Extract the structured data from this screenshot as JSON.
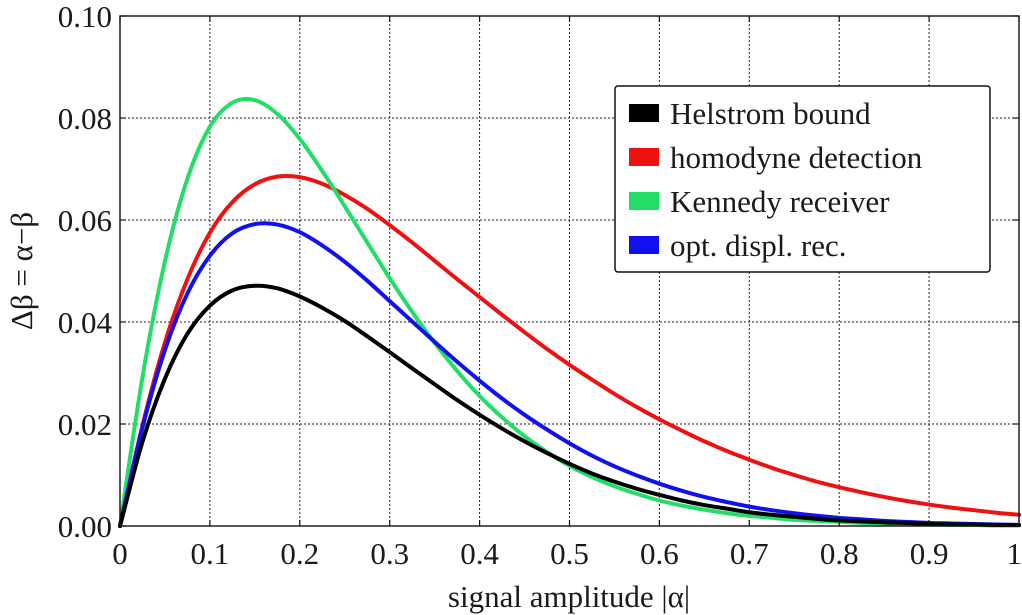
{
  "chart_data": {
    "type": "line",
    "xlabel": "signal amplitude |α|",
    "ylabel": "Δβ = α−β",
    "xlim": [
      0,
      1
    ],
    "ylim": [
      0,
      0.1
    ],
    "xticks": [
      0,
      0.1,
      0.2,
      0.3,
      0.4,
      0.5,
      0.6,
      0.7,
      0.8,
      0.9,
      1
    ],
    "xtick_labels": [
      "0",
      "0.1",
      "0.2",
      "0.3",
      "0.4",
      "0.5",
      "0.6",
      "0.7",
      "0.8",
      "0.9",
      "1"
    ],
    "yticks": [
      0,
      0.02,
      0.04,
      0.06,
      0.08,
      0.1
    ],
    "ytick_labels": [
      "0.00",
      "0.02",
      "0.04",
      "0.06",
      "0.08",
      "0.10"
    ],
    "grid": true,
    "legend_position": "top-right",
    "x": [
      0,
      0.025,
      0.05,
      0.075,
      0.1,
      0.125,
      0.15,
      0.175,
      0.2,
      0.225,
      0.25,
      0.275,
      0.3,
      0.325,
      0.35,
      0.375,
      0.4,
      0.425,
      0.45,
      0.475,
      0.5,
      0.525,
      0.55,
      0.575,
      0.6,
      0.625,
      0.65,
      0.675,
      0.7,
      0.725,
      0.75,
      0.775,
      0.8,
      0.825,
      0.85,
      0.875,
      0.9,
      0.925,
      0.95,
      0.975,
      1
    ],
    "series": [
      {
        "name": "Helstrom bound",
        "color": "#000000",
        "values": [
          0.0,
          0.0165,
          0.0289,
          0.0377,
          0.0432,
          0.0462,
          0.0471,
          0.0466,
          0.045,
          0.0428,
          0.0402,
          0.0372,
          0.0341,
          0.0309,
          0.0278,
          0.0247,
          0.0218,
          0.0191,
          0.0166,
          0.0143,
          0.0122,
          0.0103,
          0.0087,
          0.0073,
          0.0061,
          0.005,
          0.0041,
          0.0034,
          0.0027,
          0.0022,
          0.0018,
          0.0014,
          0.0011,
          0.0009,
          0.0007,
          0.0006,
          0.0004,
          0.0003,
          0.0003,
          0.0002,
          0.0002
        ]
      },
      {
        "name": "homodyne detection",
        "color": "#ee1111",
        "values": [
          0.0,
          0.0197,
          0.036,
          0.0484,
          0.0575,
          0.0635,
          0.067,
          0.0685,
          0.0684,
          0.0671,
          0.0649,
          0.0622,
          0.059,
          0.0556,
          0.052,
          0.0484,
          0.0449,
          0.0414,
          0.038,
          0.0347,
          0.0316,
          0.0287,
          0.0259,
          0.0233,
          0.0209,
          0.0187,
          0.0166,
          0.0147,
          0.013,
          0.0114,
          0.01,
          0.0087,
          0.0076,
          0.0066,
          0.0057,
          0.0049,
          0.0042,
          0.0036,
          0.0031,
          0.0026,
          0.0022
        ]
      },
      {
        "name": "Kennedy receiver",
        "color": "#22dd66",
        "values": [
          0.0,
          0.0292,
          0.0519,
          0.0681,
          0.0783,
          0.083,
          0.0835,
          0.0808,
          0.0759,
          0.0696,
          0.0627,
          0.0556,
          0.0486,
          0.042,
          0.0359,
          0.0304,
          0.0255,
          0.0213,
          0.0176,
          0.0145,
          0.0118,
          0.0096,
          0.0078,
          0.0063,
          0.005,
          0.004,
          0.0032,
          0.0025,
          0.002,
          0.0016,
          0.0012,
          0.001,
          0.0008,
          0.0006,
          0.0005,
          0.0004,
          0.0003,
          0.0002,
          0.0002,
          0.0001,
          0.0001
        ]
      },
      {
        "name": "opt. displ. rec.",
        "color": "#1111ee",
        "values": [
          0.0,
          0.0193,
          0.0345,
          0.0456,
          0.053,
          0.0574,
          0.0592,
          0.0591,
          0.0576,
          0.055,
          0.0518,
          0.0481,
          0.0441,
          0.0401,
          0.0361,
          0.0322,
          0.0285,
          0.025,
          0.0218,
          0.0189,
          0.0162,
          0.0138,
          0.0117,
          0.0099,
          0.0083,
          0.0069,
          0.0057,
          0.0047,
          0.0038,
          0.0031,
          0.0025,
          0.002,
          0.0016,
          0.0013,
          0.001,
          0.0008,
          0.0006,
          0.0005,
          0.0004,
          0.0003,
          0.0002
        ]
      }
    ]
  }
}
